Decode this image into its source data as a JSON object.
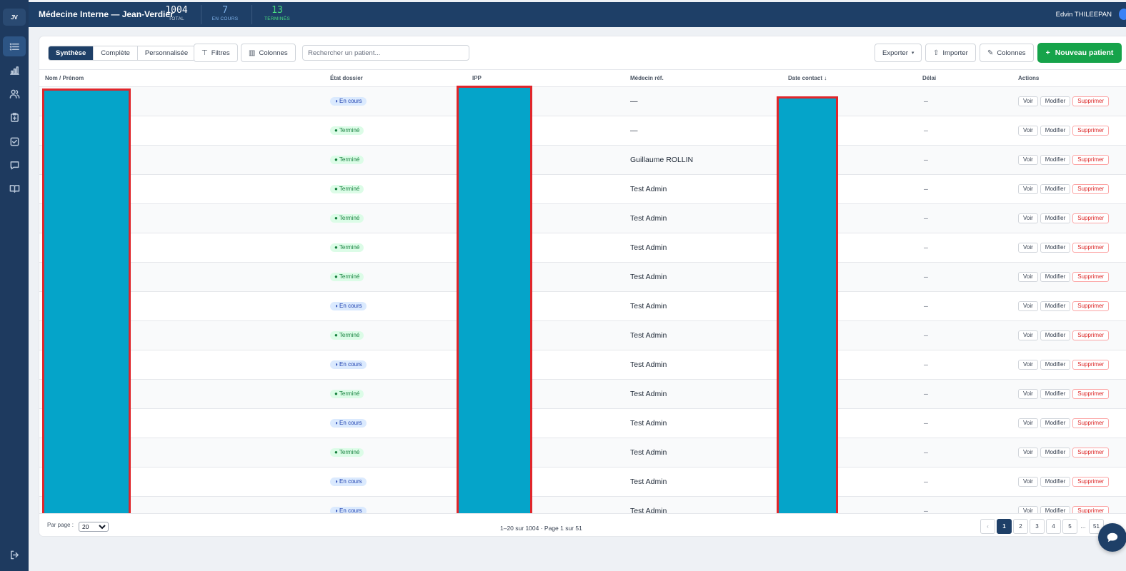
{
  "app": {
    "logo": "JV",
    "title": "Médecine Interne — Jean-Verdier",
    "user_name": "Edvin THILEEPAN"
  },
  "stats": [
    {
      "value": "1004",
      "label": "TOTAL",
      "color": "#ffffff"
    },
    {
      "value": "7",
      "label": "EN COURS",
      "color": "#7fb2ea"
    },
    {
      "value": "13",
      "label": "TERMINÉS",
      "color": "#4ade80"
    }
  ],
  "sidebar": {
    "items": [
      {
        "icon": "list-icon",
        "active": true
      },
      {
        "icon": "bar-chart-icon",
        "active": false
      },
      {
        "icon": "users-icon",
        "active": false
      },
      {
        "icon": "clipboard-icon",
        "active": false
      },
      {
        "icon": "checkbox-icon",
        "active": false
      },
      {
        "icon": "message-icon",
        "active": false
      },
      {
        "icon": "book-icon",
        "active": false
      }
    ],
    "logout_icon": "logout-icon"
  },
  "toolbar": {
    "views": [
      "Synthèse",
      "Complète",
      "Personnalisée"
    ],
    "active_view": "Synthèse",
    "filters_label": "Filtres",
    "columns_label": "Colonnes",
    "search_placeholder": "Rechercher un patient...",
    "export_label": "Exporter",
    "import_label": "Importer",
    "columns2_label": "Colonnes",
    "new_patient_label": "Nouveau patient"
  },
  "table": {
    "columns": [
      "Nom / Prénom",
      "État dossier",
      "IPP",
      "Médecin réf.",
      "Date contact ↓",
      "Délai",
      "Actions"
    ],
    "action_labels": [
      "Voir",
      "Modifier",
      "Supprimer"
    ],
    "rows": [
      {
        "etat": "En cours",
        "medecin": "—",
        "delai": "–"
      },
      {
        "etat": "Terminé",
        "medecin": "—",
        "delai": "–"
      },
      {
        "etat": "Terminé",
        "medecin": "Guillaume ROLLIN",
        "delai": "–"
      },
      {
        "etat": "Terminé",
        "medecin": "Test Admin",
        "delai": "–"
      },
      {
        "etat": "Terminé",
        "medecin": "Test Admin",
        "delai": "–"
      },
      {
        "etat": "Terminé",
        "medecin": "Test Admin",
        "delai": "–"
      },
      {
        "etat": "Terminé",
        "medecin": "Test Admin",
        "delai": "–"
      },
      {
        "etat": "En cours",
        "medecin": "Test Admin",
        "delai": "–"
      },
      {
        "etat": "Terminé",
        "medecin": "Test Admin",
        "delai": "–"
      },
      {
        "etat": "En cours",
        "medecin": "Test Admin",
        "delai": "–"
      },
      {
        "etat": "Terminé",
        "medecin": "Test Admin",
        "delai": "–"
      },
      {
        "etat": "En cours",
        "medecin": "Test Admin",
        "delai": "–"
      },
      {
        "etat": "Terminé",
        "medecin": "Test Admin",
        "delai": "–"
      },
      {
        "etat": "En cours",
        "medecin": "Test Admin",
        "delai": "–"
      },
      {
        "etat": "En cours",
        "medecin": "Test Admin",
        "delai": "–"
      }
    ]
  },
  "footer": {
    "per_page_label": "Par page :",
    "per_page_value": "20",
    "summary": "1–20 sur 1004 · Page 1 sur 51",
    "pages": [
      "‹",
      "1",
      "2",
      "3",
      "4",
      "5",
      "…",
      "51"
    ],
    "current_page": "1"
  },
  "colors": {
    "sidebar": "#1e3a5f",
    "header": "#1e3f67",
    "primary": "#1e3f67",
    "success": "#16a34a",
    "danger": "#dc2626",
    "redaction_fill": "#05a4c9",
    "redaction_border": "#e0262b"
  }
}
